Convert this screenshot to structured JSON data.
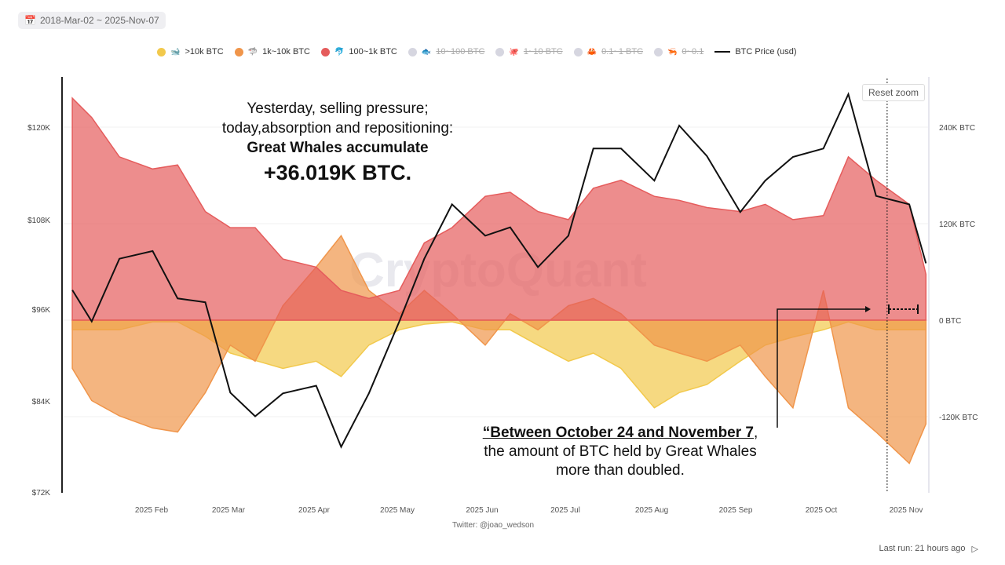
{
  "date_range": "2018-Mar-02 ~ 2025-Nov-07",
  "legend": [
    {
      "label": ">10k BTC",
      "color": "#f2c94c",
      "icon": "whale-icon",
      "active": true
    },
    {
      "label": "1k~10k BTC",
      "color": "#f0954a",
      "icon": "shark-icon",
      "active": true
    },
    {
      "label": "100~1k BTC",
      "color": "#e55c5c",
      "icon": "dolphin-icon",
      "active": true
    },
    {
      "label": "10~100 BTC",
      "color": "#d6d6e0",
      "icon": "fish-icon",
      "active": false
    },
    {
      "label": "1~10 BTC",
      "color": "#d6d6e0",
      "icon": "octopus-icon",
      "active": false
    },
    {
      "label": "0.1~1 BTC",
      "color": "#d6d6e0",
      "icon": "crab-icon",
      "active": false
    },
    {
      "label": "0~0.1",
      "color": "#d6d6e0",
      "icon": "shrimp-icon",
      "active": false
    },
    {
      "label": "BTC Price (usd)",
      "color": "#111111",
      "icon": "line",
      "active": true
    }
  ],
  "reset_zoom": "Reset zoom",
  "watermark": "CryptoQuant",
  "annotation_top": {
    "line1": "Yesterday, selling pressure;",
    "line2": "today,absorption and repositioning:",
    "line3": "Great Whales accumulate",
    "line4": "+36.019K BTC."
  },
  "annotation_bottom": {
    "bold": "“Between October 24 and November 7",
    "rest1": ",",
    "rest2": "the amount of BTC held by Great Whales",
    "rest3": "more than doubled."
  },
  "footer": {
    "twitter": "Twitter: @joao_wedson",
    "last_run": "Last run: 21 hours ago"
  },
  "chart_data": {
    "type": "area",
    "x": [
      "2025-01-03",
      "2025-01-10",
      "2025-01-20",
      "2025-02-01",
      "2025-02-10",
      "2025-02-20",
      "2025-03-01",
      "2025-03-10",
      "2025-03-20",
      "2025-04-01",
      "2025-04-10",
      "2025-04-20",
      "2025-05-01",
      "2025-05-10",
      "2025-05-20",
      "2025-06-01",
      "2025-06-10",
      "2025-06-20",
      "2025-07-01",
      "2025-07-10",
      "2025-07-20",
      "2025-08-01",
      "2025-08-10",
      "2025-08-20",
      "2025-09-01",
      "2025-09-10",
      "2025-09-20",
      "2025-10-01",
      "2025-10-10",
      "2025-10-20",
      "2025-11-01",
      "2025-11-07"
    ],
    "x_ticks": [
      "2025 Feb",
      "2025 Mar",
      "2025 Apr",
      "2025 May",
      "2025 Jun",
      "2025 Jul",
      "2025 Aug",
      "2025 Sep",
      "2025 Oct",
      "2025 Nov"
    ],
    "y_left": {
      "label": "",
      "ticks": [
        "$72K",
        "$84K",
        "$96K",
        "$108K",
        "$120K"
      ],
      "range": [
        72,
        124
      ]
    },
    "y_right": {
      "label": "",
      "ticks": [
        "-120K BTC",
        "0 BTC",
        "120K BTC",
        "240K BTC"
      ],
      "range": [
        -215,
        285
      ]
    },
    "series": [
      {
        "name": "100~1k BTC",
        "axis": "right",
        "unit": "K BTC",
        "color": "#e55c5c",
        "values": [
          276,
          252,
          203,
          188,
          193,
          135,
          115,
          115,
          76,
          66,
          37,
          27,
          37,
          96,
          115,
          154,
          159,
          135,
          125,
          164,
          174,
          154,
          149,
          140,
          135,
          144,
          125,
          130,
          203,
          174,
          144,
          57
        ]
      },
      {
        "name": "1k~10k BTC",
        "axis": "right",
        "unit": "K BTC",
        "color": "#f0954a",
        "values": [
          -60,
          -100,
          -119,
          -134,
          -139,
          -90,
          -31,
          -51,
          18,
          66,
          105,
          37,
          8,
          37,
          8,
          -31,
          8,
          -12,
          18,
          27,
          8,
          -31,
          -41,
          -51,
          -31,
          -70,
          -109,
          37,
          -109,
          -139,
          -178,
          -129
        ]
      },
      {
        "name": ">10k BTC",
        "axis": "right",
        "unit": "K BTC",
        "color": "#f2c94c",
        "values": [
          -12,
          -12,
          -12,
          -2,
          -2,
          -20,
          -41,
          -50,
          -60,
          -51,
          -70,
          -31,
          -12,
          -5,
          -2,
          -12,
          -12,
          -31,
          -51,
          -41,
          -60,
          -109,
          -90,
          -80,
          -51,
          -31,
          -21,
          -12,
          -2,
          -12,
          -12,
          -12
        ]
      },
      {
        "name": "BTC Price (usd)",
        "axis": "left",
        "unit": "K USD",
        "color": "#111111",
        "values": [
          98.5,
          94.4,
          102.6,
          103.6,
          97.4,
          96.9,
          85.1,
          82,
          85,
          86,
          78,
          85,
          94.4,
          102.6,
          109.7,
          105.6,
          106.7,
          101.5,
          105.6,
          117,
          117,
          112.8,
          120,
          116,
          108.7,
          112.8,
          115.9,
          117,
          124.1,
          110.8,
          109.7,
          102
        ]
      }
    ],
    "marker_date": "2025-10-24",
    "grid": true
  }
}
